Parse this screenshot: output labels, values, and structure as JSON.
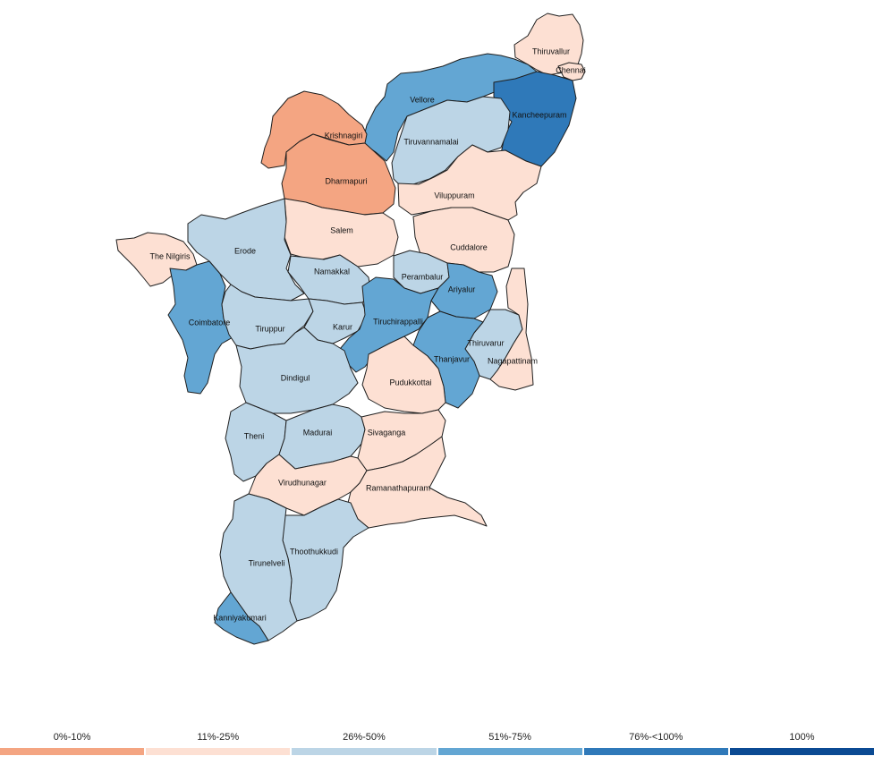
{
  "legend": {
    "items": [
      {
        "label": "0%-10%",
        "color": "#f4a582"
      },
      {
        "label": "11%-25%",
        "color": "#fde0d3"
      },
      {
        "label": "26%-50%",
        "color": "#bcd5e6"
      },
      {
        "label": "51%-75%",
        "color": "#63a6d3"
      },
      {
        "label": "76%-<100%",
        "color": "#2f79b9"
      },
      {
        "label": "100%",
        "color": "#0b4a93"
      }
    ]
  },
  "districts": [
    {
      "name": "Thiruvallur",
      "class": 1
    },
    {
      "name": "Chennai",
      "class": 1
    },
    {
      "name": "Vellore",
      "class": 3
    },
    {
      "name": "Kancheepuram",
      "class": 4
    },
    {
      "name": "Krishnagiri",
      "class": 0
    },
    {
      "name": "Tiruvannamalai",
      "class": 2
    },
    {
      "name": "Dharmapuri",
      "class": 0
    },
    {
      "name": "Viluppuram",
      "class": 1
    },
    {
      "name": "Salem",
      "class": 1
    },
    {
      "name": "Erode",
      "class": 2
    },
    {
      "name": "The Nilgiris",
      "class": 1
    },
    {
      "name": "Cuddalore",
      "class": 1
    },
    {
      "name": "Namakkal",
      "class": 2
    },
    {
      "name": "Perambalur",
      "class": 2
    },
    {
      "name": "Ariyalur",
      "class": 3
    },
    {
      "name": "Coimbatore",
      "class": 3
    },
    {
      "name": "Tiruppur",
      "class": 2
    },
    {
      "name": "Karur",
      "class": 2
    },
    {
      "name": "Tiruchirappalli",
      "class": 3
    },
    {
      "name": "Thiruvarur",
      "class": 2
    },
    {
      "name": "Thanjavur",
      "class": 3
    },
    {
      "name": "Nagapattinam",
      "class": 1
    },
    {
      "name": "Dindigul",
      "class": 2
    },
    {
      "name": "Pudukkottai",
      "class": 1
    },
    {
      "name": "Theni",
      "class": 2
    },
    {
      "name": "Madurai",
      "class": 2
    },
    {
      "name": "Sivaganga",
      "class": 1
    },
    {
      "name": "Virudhunagar",
      "class": 1
    },
    {
      "name": "Ramanathapuram",
      "class": 1
    },
    {
      "name": "Thoothukkudi",
      "class": 2
    },
    {
      "name": "Tirunelveli",
      "class": 2
    },
    {
      "name": "Kanniyakumari",
      "class": 3
    }
  ]
}
